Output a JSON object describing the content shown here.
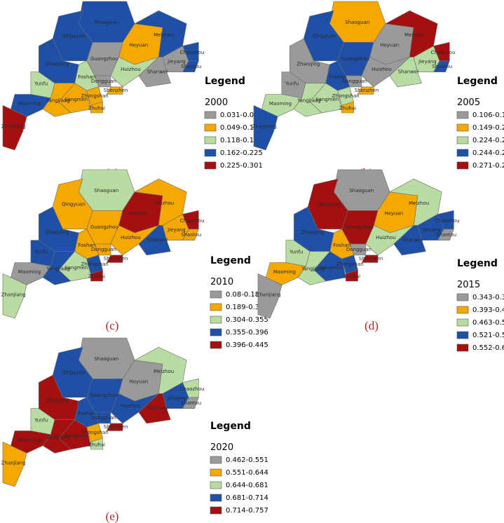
{
  "panels": [
    {
      "label": "(a)",
      "legend_title": "Legend",
      "year": "2000",
      "classes": [
        {
          "label": "0.031-0.049",
          "color": "#9a9a9a"
        },
        {
          "label": "0.049-0.118",
          "color": "#f5a800"
        },
        {
          "label": "0.118-0.162",
          "color": "#b9dca2"
        },
        {
          "label": "0.162-0.225",
          "color": "#1e50a8"
        },
        {
          "label": "0.225-0.301",
          "color": "#a50f10"
        }
      ],
      "regions": [
        {
          "name": "Shaoguan",
          "color": "#1e50a8"
        },
        {
          "name": "Qingyuan",
          "color": "#1e50a8"
        },
        {
          "name": "Heyuan",
          "color": "#f5a800"
        },
        {
          "name": "Meizhou",
          "color": "#1e50a8"
        },
        {
          "name": "Chaozhou",
          "color": "#1e50a8"
        },
        {
          "name": "Shantou",
          "color": "#1e50a8"
        },
        {
          "name": "Jieyang",
          "color": "#9a9a9a"
        },
        {
          "name": "Shanwei",
          "color": "#9a9a9a"
        },
        {
          "name": "Huizhou",
          "color": "#b9dca2"
        },
        {
          "name": "Guangzhou",
          "color": "#9a9a9a"
        },
        {
          "name": "Dongguan",
          "color": "#9a9a9a"
        },
        {
          "name": "Shenzhen",
          "color": "#f5a800"
        },
        {
          "name": "Foshan",
          "color": "#b9dca2"
        },
        {
          "name": "Zhaoqing",
          "color": "#1e50a8"
        },
        {
          "name": "Yunfu",
          "color": "#b9dca2"
        },
        {
          "name": "Jiangmen",
          "color": "#f5a800"
        },
        {
          "name": "Zhongshan",
          "color": "#f5a800"
        },
        {
          "name": "Zhuhai",
          "color": "#f5a800"
        },
        {
          "name": "Yangjiang",
          "color": "#f5a800"
        },
        {
          "name": "Maoming",
          "color": "#1e50a8"
        },
        {
          "name": "Zhanjiang",
          "color": "#a50f10"
        }
      ]
    },
    {
      "label": "(b)",
      "legend_title": "Legend",
      "year": "2005",
      "classes": [
        {
          "label": "0.106-0.149",
          "color": "#9a9a9a"
        },
        {
          "label": "0.149-0.224",
          "color": "#f5a800"
        },
        {
          "label": "0.224-0.244",
          "color": "#b9dca2"
        },
        {
          "label": "0.244-0.271",
          "color": "#1e50a8"
        },
        {
          "label": "0.271-0.297",
          "color": "#a50f10"
        }
      ],
      "regions": [
        {
          "name": "Shaoguan",
          "color": "#f5a800"
        },
        {
          "name": "Qingyuan",
          "color": "#1e50a8"
        },
        {
          "name": "Heyuan",
          "color": "#9a9a9a"
        },
        {
          "name": "Meizhou",
          "color": "#a50f10"
        },
        {
          "name": "Chaozhou",
          "color": "#a50f10"
        },
        {
          "name": "Shantou",
          "color": "#1e50a8"
        },
        {
          "name": "Jieyang",
          "color": "#b9dca2"
        },
        {
          "name": "Shanwei",
          "color": "#b9dca2"
        },
        {
          "name": "Huizhou",
          "color": "#9a9a9a"
        },
        {
          "name": "Guangzhou",
          "color": "#1e50a8"
        },
        {
          "name": "Dongguan",
          "color": "#9a9a9a"
        },
        {
          "name": "Shenzhen",
          "color": "#f5a800"
        },
        {
          "name": "Foshan",
          "color": "#1e50a8"
        },
        {
          "name": "Zhaoqing",
          "color": "#9a9a9a"
        },
        {
          "name": "Yunfu",
          "color": "#9a9a9a"
        },
        {
          "name": "Jiangmen",
          "color": "#b9dca2"
        },
        {
          "name": "Zhongshan",
          "color": "#b9dca2"
        },
        {
          "name": "Zhuhai",
          "color": "#f5a800"
        },
        {
          "name": "Yangjiang",
          "color": "#b9dca2"
        },
        {
          "name": "Maoming",
          "color": "#b9dca2"
        },
        {
          "name": "Zhanjiang",
          "color": "#1e50a8"
        }
      ]
    },
    {
      "label": "(c)",
      "legend_title": "Legend",
      "year": "2010",
      "classes": [
        {
          "label": "0.08-0.189",
          "color": "#9a9a9a"
        },
        {
          "label": "0.189-0.304",
          "color": "#f5a800"
        },
        {
          "label": "0.304-0.355",
          "color": "#b9dca2"
        },
        {
          "label": "0.355-0.396",
          "color": "#1e50a8"
        },
        {
          "label": "0.396-0.445",
          "color": "#a50f10"
        }
      ],
      "regions": [
        {
          "name": "Shaoguan",
          "color": "#b9dca2"
        },
        {
          "name": "Qingyuan",
          "color": "#f5a800"
        },
        {
          "name": "Heyuan",
          "color": "#a50f10"
        },
        {
          "name": "Meizhou",
          "color": "#f5a800"
        },
        {
          "name": "Chaozhou",
          "color": "#a50f10"
        },
        {
          "name": "Shantou",
          "color": "#f5a800"
        },
        {
          "name": "Jieyang",
          "color": "#f5a800"
        },
        {
          "name": "Shanwei",
          "color": "#1e50a8"
        },
        {
          "name": "Huizhou",
          "color": "#f5a800"
        },
        {
          "name": "Guangzhou",
          "color": "#f5a800"
        },
        {
          "name": "Dongguan",
          "color": "#f5a800"
        },
        {
          "name": "Shenzhen",
          "color": "#a50f10"
        },
        {
          "name": "Foshan",
          "color": "#f5a800"
        },
        {
          "name": "Zhaoqing",
          "color": "#1e50a8"
        },
        {
          "name": "Yunfu",
          "color": "#1e50a8"
        },
        {
          "name": "Jiangmen",
          "color": "#b9dca2"
        },
        {
          "name": "Zhongshan",
          "color": "#1e50a8"
        },
        {
          "name": "Zhuhai",
          "color": "#a50f10"
        },
        {
          "name": "Yangjiang",
          "color": "#1e50a8"
        },
        {
          "name": "Maoming",
          "color": "#9a9a9a"
        },
        {
          "name": "Zhanjiang",
          "color": "#b9dca2"
        }
      ]
    },
    {
      "label": "(d)",
      "legend_title": "Legend",
      "year": "2015",
      "classes": [
        {
          "label": "0.343-0.393",
          "color": "#9a9a9a"
        },
        {
          "label": "0.393-0.463",
          "color": "#f5a800"
        },
        {
          "label": "0.463-0.521",
          "color": "#b9dca2"
        },
        {
          "label": "0.521-0.552",
          "color": "#1e50a8"
        },
        {
          "label": "0.552-0.619",
          "color": "#a50f10"
        }
      ],
      "regions": [
        {
          "name": "Shaoguan",
          "color": "#9a9a9a"
        },
        {
          "name": "Qingyuan",
          "color": "#a50f10"
        },
        {
          "name": "Heyuan",
          "color": "#f5a800"
        },
        {
          "name": "Meizhou",
          "color": "#b9dca2"
        },
        {
          "name": "Chaozhou",
          "color": "#1e50a8"
        },
        {
          "name": "Shantou",
          "color": "#9a9a9a"
        },
        {
          "name": "Jieyang",
          "color": "#1e50a8"
        },
        {
          "name": "Shanwei",
          "color": "#1e50a8"
        },
        {
          "name": "Huizhou",
          "color": "#b9dca2"
        },
        {
          "name": "Guangzhou",
          "color": "#a50f10"
        },
        {
          "name": "Dongguan",
          "color": "#9a9a9a"
        },
        {
          "name": "Shenzhen",
          "color": "#a50f10"
        },
        {
          "name": "Foshan",
          "color": "#f5a800"
        },
        {
          "name": "Zhaoqing",
          "color": "#1e50a8"
        },
        {
          "name": "Yunfu",
          "color": "#b9dca2"
        },
        {
          "name": "Jiangmen",
          "color": "#1e50a8"
        },
        {
          "name": "Zhongshan",
          "color": "#1e50a8"
        },
        {
          "name": "Zhuhai",
          "color": "#a50f10"
        },
        {
          "name": "Yangjiang",
          "color": "#b9dca2"
        },
        {
          "name": "Maoming",
          "color": "#f5a800"
        },
        {
          "name": "Zhanjiang",
          "color": "#9a9a9a"
        }
      ]
    },
    {
      "label": "(e)",
      "legend_title": "Legend",
      "year": "2020",
      "classes": [
        {
          "label": "0.462-0.551",
          "color": "#9a9a9a"
        },
        {
          "label": "0.551-0.644",
          "color": "#f5a800"
        },
        {
          "label": "0.644-0.681",
          "color": "#b9dca2"
        },
        {
          "label": "0.681-0.714",
          "color": "#1e50a8"
        },
        {
          "label": "0.714-0.757",
          "color": "#a50f10"
        }
      ],
      "regions": [
        {
          "name": "Shaoguan",
          "color": "#9a9a9a"
        },
        {
          "name": "Qingyuan",
          "color": "#1e50a8"
        },
        {
          "name": "Heyuan",
          "color": "#9a9a9a"
        },
        {
          "name": "Meizhou",
          "color": "#b9dca2"
        },
        {
          "name": "Chaozhou",
          "color": "#b9dca2"
        },
        {
          "name": "Shantou",
          "color": "#9a9a9a"
        },
        {
          "name": "Jieyang",
          "color": "#1e50a8"
        },
        {
          "name": "Shanwei",
          "color": "#a50f10"
        },
        {
          "name": "Huizhou",
          "color": "#1e50a8"
        },
        {
          "name": "Guangzhou",
          "color": "#1e50a8"
        },
        {
          "name": "Dongguan",
          "color": "#1e50a8"
        },
        {
          "name": "Shenzhen",
          "color": "#a50f10"
        },
        {
          "name": "Foshan",
          "color": "#1e50a8"
        },
        {
          "name": "Zhaoqing",
          "color": "#a50f10"
        },
        {
          "name": "Yunfu",
          "color": "#b9dca2"
        },
        {
          "name": "Jiangmen",
          "color": "#a50f10"
        },
        {
          "name": "Zhongshan",
          "color": "#f5a800"
        },
        {
          "name": "Zhuhai",
          "color": "#b9dca2"
        },
        {
          "name": "Yangjiang",
          "color": "#a50f10"
        },
        {
          "name": "Maoming",
          "color": "#a50f10"
        },
        {
          "name": "Zhanjiang",
          "color": "#f5a800"
        }
      ]
    }
  ]
}
